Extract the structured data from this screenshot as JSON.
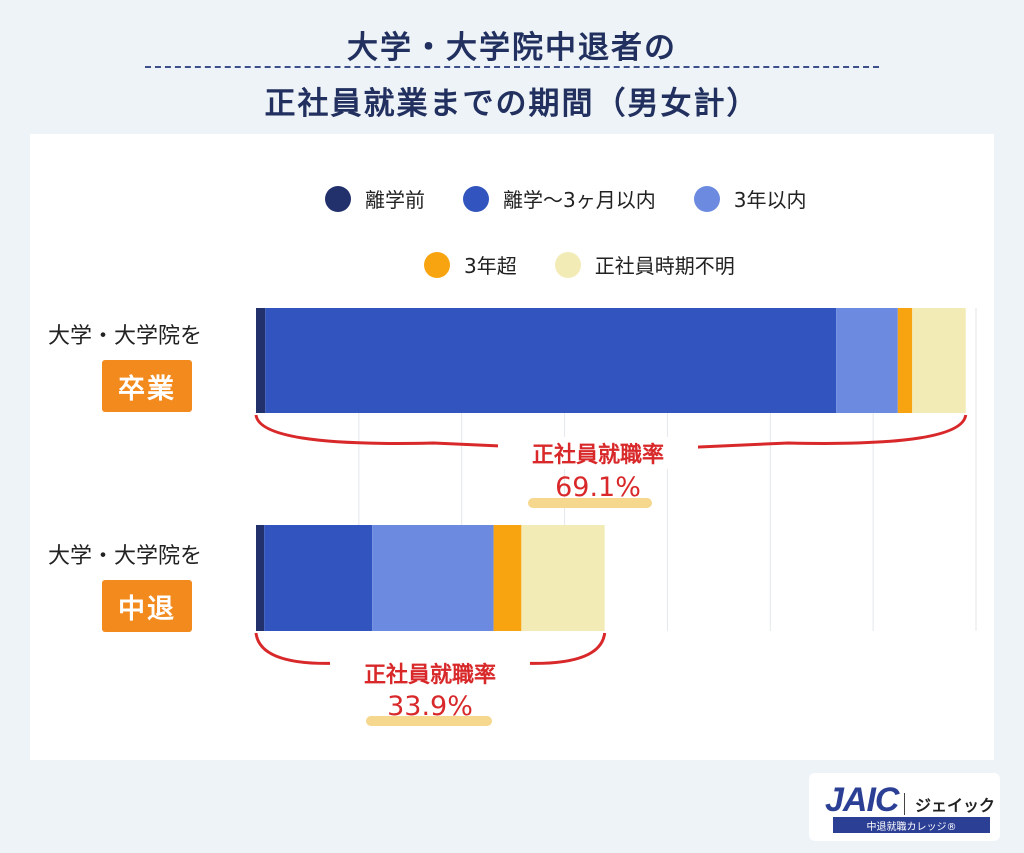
{
  "title": {
    "line1": "大学・大学院中退者の",
    "line2": "正社員就業までの期間（男女計）"
  },
  "legend": [
    {
      "label": "離学前",
      "color": "#22306b"
    },
    {
      "label": "離学〜3ヶ月以内",
      "color": "#3154be"
    },
    {
      "label": "3年以内",
      "color": "#6c8be0"
    },
    {
      "label": "3年超",
      "color": "#f7a410"
    },
    {
      "label": "正社員時期不明",
      "color": "#f2ebb6"
    }
  ],
  "rows": [
    {
      "label": "大学・大学院を",
      "badge": "卒業",
      "rate_label": "正社員就職率",
      "rate_value": "69.1%"
    },
    {
      "label": "大学・大学院を",
      "badge": "中退",
      "rate_label": "正社員就職率",
      "rate_value": "33.9%"
    }
  ],
  "chart_data": {
    "type": "bar",
    "orientation": "horizontal",
    "stacked": true,
    "title": "大学・大学院中退者の正社員就業までの期間（男女計）",
    "categories": [
      "大学・大学院を卒業",
      "大学・大学院を中退"
    ],
    "series": [
      {
        "name": "離学前",
        "values": [
          0.9,
          0.8
        ]
      },
      {
        "name": "離学〜3ヶ月以内",
        "values": [
          55.5,
          10.5
        ]
      },
      {
        "name": "3年以内",
        "values": [
          6.0,
          11.8
        ]
      },
      {
        "name": "3年超",
        "values": [
          1.4,
          2.7
        ]
      },
      {
        "name": "正社員時期不明",
        "values": [
          5.2,
          8.1
        ]
      }
    ],
    "totals": [
      "69.1%",
      "33.9%"
    ],
    "xlim": [
      0,
      70
    ],
    "grid": true,
    "legend": "top"
  },
  "logo": {
    "mark": "JAIC",
    "kana": "ジェイック",
    "tagline": "中退就職カレッジ®"
  }
}
